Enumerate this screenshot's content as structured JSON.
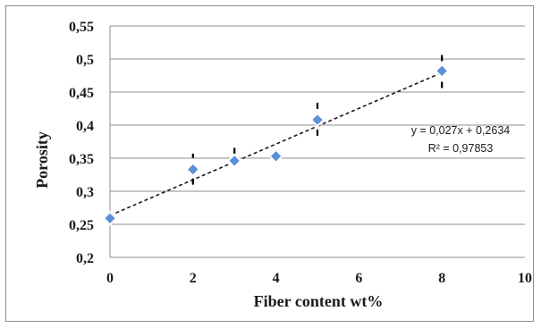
{
  "chart_data": {
    "type": "scatter",
    "xlabel": "Fiber content wt%",
    "ylabel": "Porosity",
    "xlim": [
      0,
      10
    ],
    "ylim": [
      0.2,
      0.55
    ],
    "x_ticks": [
      "0",
      "2",
      "4",
      "6",
      "8",
      "10"
    ],
    "y_ticks": [
      "0,2",
      "0,25",
      "0,3",
      "0,35",
      "0,4",
      "0,45",
      "0,5",
      "0,55"
    ],
    "grid": "horizontal",
    "series": [
      {
        "x": [
          0,
          2,
          3,
          4,
          5,
          8
        ],
        "y": [
          0.259,
          0.333,
          0.346,
          0.353,
          0.408,
          0.482
        ],
        "error_low": [
          0.252,
          0.31,
          0.336,
          0.346,
          0.384,
          0.456
        ],
        "error_high": [
          0.266,
          0.357,
          0.366,
          0.36,
          0.435,
          0.51
        ]
      }
    ],
    "trendline": {
      "type": "linear",
      "slope": 0.027,
      "intercept": 0.2634,
      "x_range": [
        0,
        8
      ]
    },
    "annotations": [
      "y = 0,027x + 0,2634",
      "R² = 0,97853"
    ],
    "colors": {
      "marker": "#5b8fd6",
      "trendline": "#1a1a1a",
      "grid": "#8c8c8c",
      "errorbar": "#000000"
    }
  }
}
